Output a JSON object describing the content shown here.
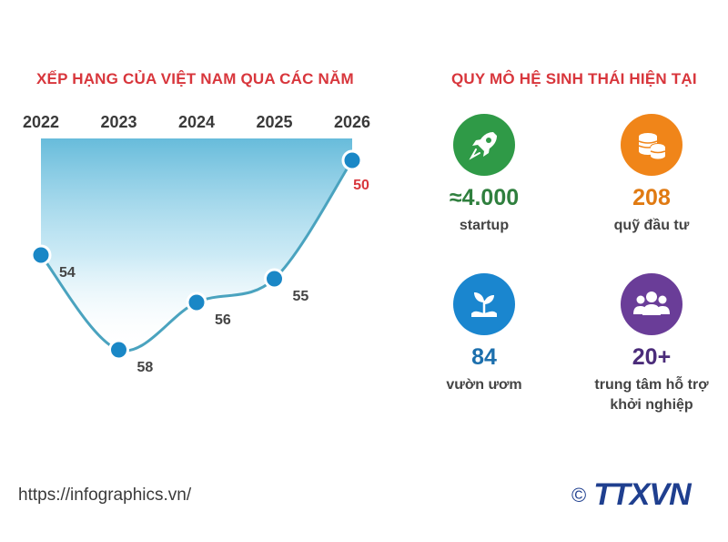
{
  "ranking": {
    "title": "XẾP HẠNG CỦA VIỆT NAM QUA CÁC NĂM"
  },
  "ecosystem": {
    "title": "QUY MÔ HỆ SINH THÁI HIỆN TẠI",
    "items": [
      {
        "value": "≈4.000",
        "label": "startup",
        "icon": "rocket-icon",
        "color": "#2f9a47"
      },
      {
        "value": "208",
        "label": "quỹ đầu tư",
        "icon": "coins-icon",
        "color": "#f08519"
      },
      {
        "value": "84",
        "label": "vườn ươm",
        "icon": "sprout-icon",
        "color": "#1a86cf"
      },
      {
        "value": "20+",
        "label": "trung tâm hỗ trợ khởi nghiệp",
        "icon": "people-icon",
        "color": "#6a3d98"
      }
    ]
  },
  "footer": {
    "source": "https://infographics.vn/",
    "copyright_symbol": "©",
    "logo_text": "TTXVN"
  },
  "chart_data": {
    "type": "line",
    "title": "XẾP HẠNG CỦA VIỆT NAM QUA CÁC NĂM",
    "x": [
      "2022",
      "2023",
      "2024",
      "2025",
      "2026"
    ],
    "series": [
      {
        "values": [
          54,
          58,
          56,
          55,
          50
        ],
        "labels": [
          "54",
          "58",
          "56",
          "55",
          "50"
        ]
      }
    ],
    "highlight_index": 4,
    "highlight_color": "#d8363c",
    "line_color": "#4aa3bf",
    "marker_color": "#1a87c6",
    "inverted_y": true,
    "ylim": [
      49,
      59
    ],
    "grid": false
  }
}
